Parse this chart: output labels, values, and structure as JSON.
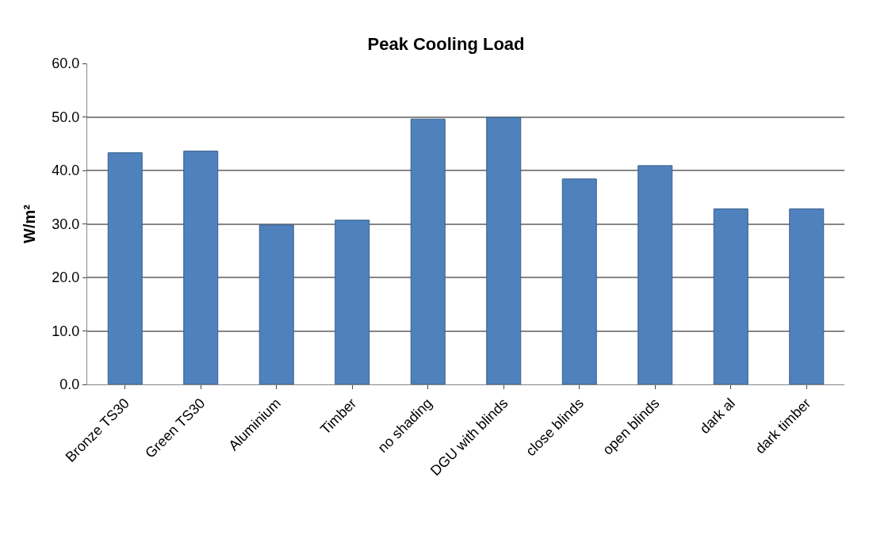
{
  "chart_data": {
    "type": "bar",
    "title": "Peak Cooling Load",
    "ylabel": "W/m²",
    "categories": [
      "Bronze TS30",
      "Green TS30",
      "Aluminium",
      "Timber",
      "no shading",
      "DGU with blinds",
      "close blinds",
      "open blinds",
      "dark al",
      "dark timber"
    ],
    "values": [
      43.3,
      43.6,
      29.8,
      30.7,
      49.6,
      49.9,
      38.4,
      40.9,
      32.8,
      32.8
    ],
    "color": "#4f81bd",
    "ylim": [
      0,
      60
    ],
    "yticks": [
      {
        "value": 0,
        "label": "0.0"
      },
      {
        "value": 10,
        "label": "10.0"
      },
      {
        "value": 20,
        "label": "20.0"
      },
      {
        "value": 30,
        "label": "30.0"
      },
      {
        "value": 40,
        "label": "40.0"
      },
      {
        "value": 50,
        "label": "50.0"
      },
      {
        "value": 60,
        "label": "60.0"
      }
    ],
    "grid": "y"
  }
}
